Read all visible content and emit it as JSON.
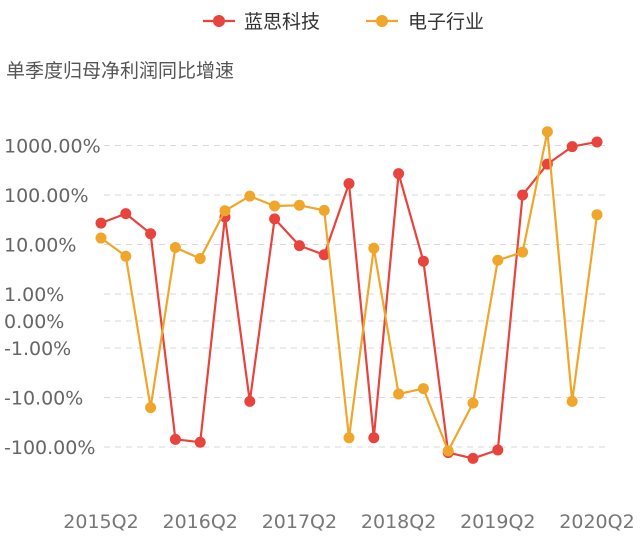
{
  "chart_data": {
    "type": "line",
    "title": "",
    "subtitle": "单季度归母净利润同比增速",
    "y_scale": "symlog",
    "y_ticks": [
      "1000.00%",
      "100.00%",
      "10.00%",
      "1.00%",
      "0.00%",
      "-1.00%",
      "-10.00%",
      "-100.00%"
    ],
    "x_tick_labels": [
      "2015Q2",
      "2016Q2",
      "2017Q2",
      "2018Q2",
      "2019Q2",
      "2020Q2"
    ],
    "x": [
      "2015Q2",
      "2015Q3",
      "2015Q4",
      "2016Q1",
      "2016Q2",
      "2016Q3",
      "2016Q4",
      "2017Q1",
      "2017Q2",
      "2017Q3",
      "2017Q4",
      "2018Q1",
      "2018Q2",
      "2018Q3",
      "2018Q4",
      "2019Q1",
      "2019Q2",
      "2019Q3",
      "2019Q4",
      "2020Q1",
      "2020Q2"
    ],
    "legend_position": "top",
    "grid": "horizontal-dashed",
    "series": [
      {
        "name": "蓝思科技",
        "color": "#e8433c",
        "values": [
          27,
          42,
          16.5,
          -70,
          -80,
          36,
          -12,
          33,
          9.5,
          6.2,
          170,
          -65,
          270,
          4.6,
          -130,
          -170,
          -115,
          100,
          420,
          950,
          1180
        ]
      },
      {
        "name": "电子行业",
        "color": "#f0a62a",
        "values": [
          13.5,
          5.8,
          -16,
          8.7,
          5.2,
          48,
          95,
          60,
          62,
          49,
          -65,
          8.4,
          -8.5,
          -6.6,
          -120,
          -13,
          4.8,
          7,
          1900,
          -12,
          40
        ]
      }
    ]
  }
}
